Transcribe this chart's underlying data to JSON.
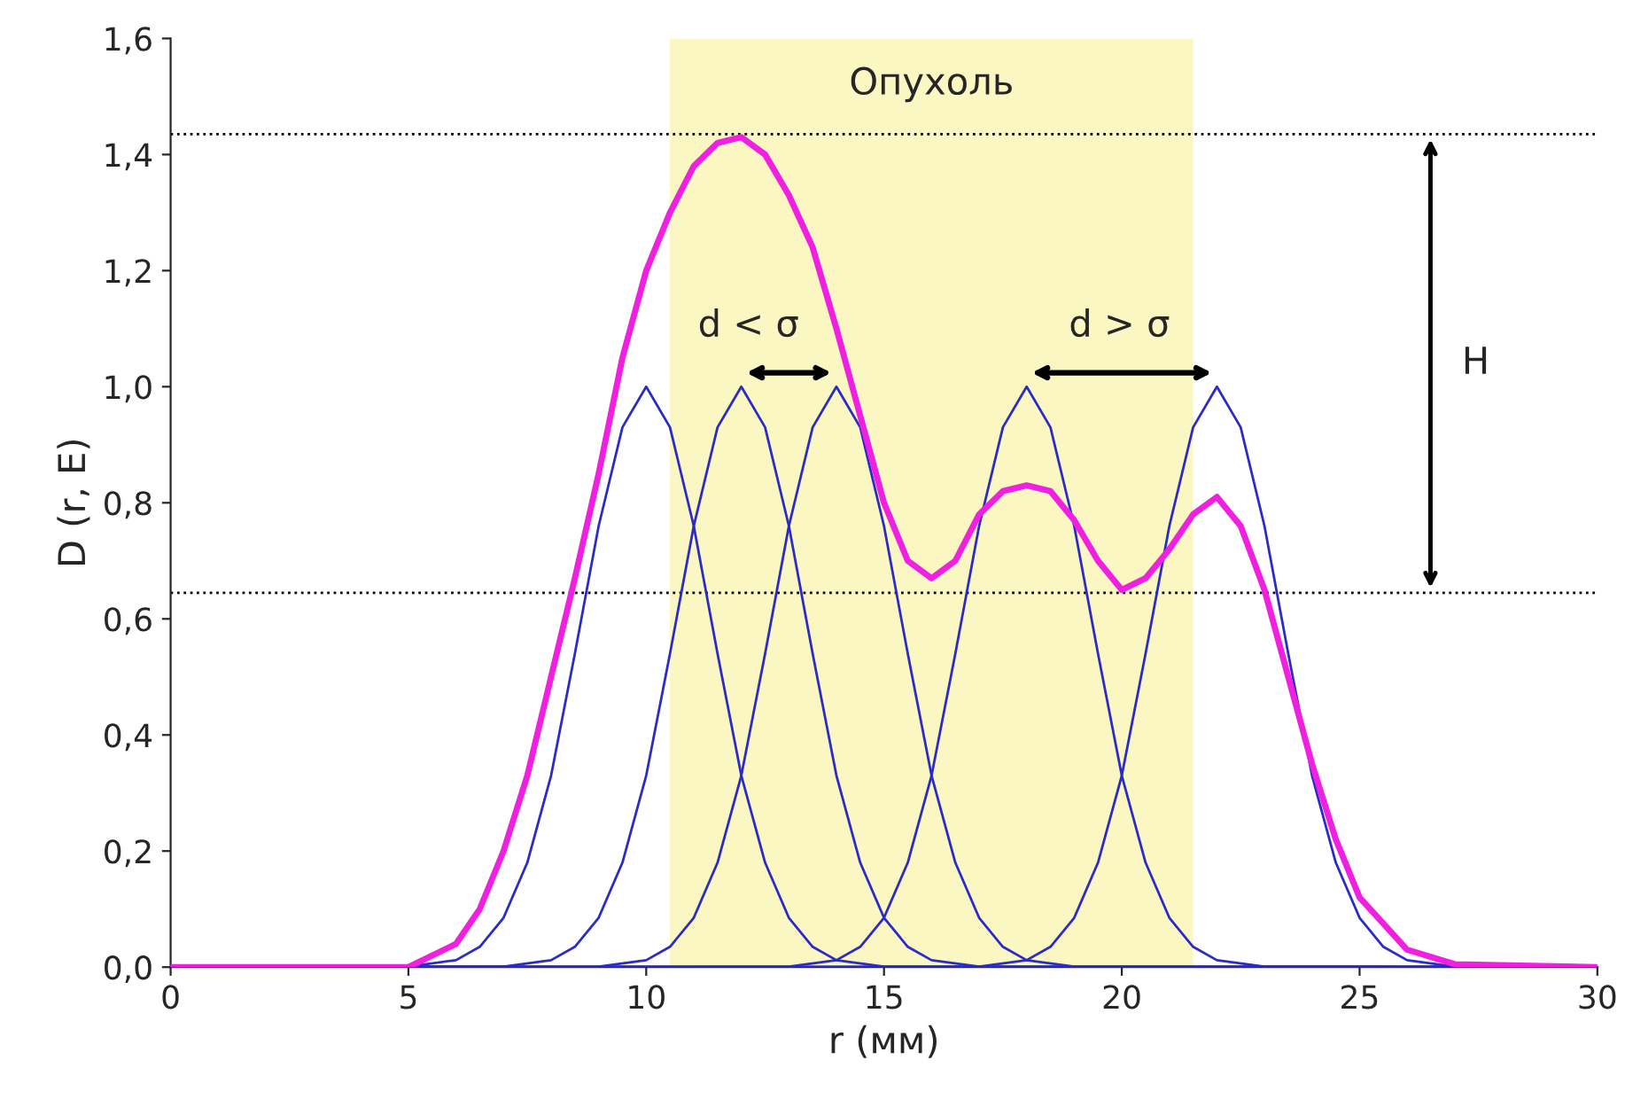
{
  "chart_data": {
    "type": "line",
    "xlabel": "r (мм)",
    "ylabel": "D (r, E)",
    "xlim": [
      0,
      30
    ],
    "xticks": [
      0,
      5,
      10,
      15,
      20,
      25,
      30
    ],
    "ylim": [
      0,
      1.6
    ],
    "yticks": [
      {
        "value": 0,
        "label": "0,0"
      },
      {
        "value": 0.2,
        "label": "0,2"
      },
      {
        "value": 0.4,
        "label": "0,4"
      },
      {
        "value": 0.6,
        "label": "0,6"
      },
      {
        "value": 0.8,
        "label": "0,8"
      },
      {
        "value": 1.0,
        "label": "1,0"
      },
      {
        "value": 1.2,
        "label": "1,2"
      },
      {
        "value": 1.4,
        "label": "1,4"
      },
      {
        "value": 1.6,
        "label": "1,6"
      }
    ],
    "grid": false,
    "legend": false,
    "marker": "none",
    "line_style": "solid",
    "bands": [
      {
        "axis": "x",
        "from": 10.5,
        "to": 21.5,
        "label": "Опухоль",
        "color": "#fbf7c3"
      }
    ],
    "ref_lines": [
      {
        "axis": "y",
        "value": 1.435,
        "line_style": "dotted",
        "color": "#000000"
      },
      {
        "axis": "y",
        "value": 0.645,
        "line_style": "dotted",
        "color": "#000000"
      }
    ],
    "annotations": [
      "d < σ",
      "d > σ",
      "H"
    ],
    "series": [
      {
        "color": "#2b2bc8",
        "x": [
          0,
          5,
          6,
          6.5,
          7,
          7.5,
          8,
          8.5,
          9,
          9.5,
          10,
          10.5,
          11,
          11.5,
          12,
          12.5,
          13,
          13.5,
          14,
          15,
          30
        ],
        "values": [
          0,
          0.001,
          0.012,
          0.035,
          0.085,
          0.18,
          0.33,
          0.54,
          0.76,
          0.93,
          1.0,
          0.93,
          0.76,
          0.54,
          0.33,
          0.18,
          0.085,
          0.035,
          0.012,
          0.001,
          0
        ]
      },
      {
        "color": "#2b2bc8",
        "x": [
          0,
          7,
          8,
          8.5,
          9,
          9.5,
          10,
          10.5,
          11,
          11.5,
          12,
          12.5,
          13,
          13.5,
          14,
          14.5,
          15,
          15.5,
          16,
          17,
          30
        ],
        "values": [
          0,
          0.001,
          0.012,
          0.035,
          0.085,
          0.18,
          0.33,
          0.54,
          0.76,
          0.93,
          1.0,
          0.93,
          0.76,
          0.54,
          0.33,
          0.18,
          0.085,
          0.035,
          0.012,
          0.001,
          0
        ]
      },
      {
        "color": "#2b2bc8",
        "x": [
          0,
          9,
          10,
          10.5,
          11,
          11.5,
          12,
          12.5,
          13,
          13.5,
          14,
          14.5,
          15,
          15.5,
          16,
          16.5,
          17,
          17.5,
          18,
          19,
          30
        ],
        "values": [
          0,
          0.001,
          0.012,
          0.035,
          0.085,
          0.18,
          0.33,
          0.54,
          0.76,
          0.93,
          1.0,
          0.93,
          0.76,
          0.54,
          0.33,
          0.18,
          0.085,
          0.035,
          0.012,
          0.001,
          0
        ]
      },
      {
        "color": "#2b2bc8",
        "x": [
          0,
          13,
          14,
          14.5,
          15,
          15.5,
          16,
          16.5,
          17,
          17.5,
          18,
          18.5,
          19,
          19.5,
          20,
          20.5,
          21,
          21.5,
          22,
          23,
          30
        ],
        "values": [
          0,
          0.001,
          0.012,
          0.035,
          0.085,
          0.18,
          0.33,
          0.54,
          0.76,
          0.93,
          1.0,
          0.93,
          0.76,
          0.54,
          0.33,
          0.18,
          0.085,
          0.035,
          0.012,
          0.001,
          0
        ]
      },
      {
        "color": "#2b2bc8",
        "x": [
          0,
          17,
          18,
          18.5,
          19,
          19.5,
          20,
          20.5,
          21,
          21.5,
          22,
          22.5,
          23,
          23.5,
          24,
          24.5,
          25,
          25.5,
          26,
          27,
          30
        ],
        "values": [
          0,
          0.001,
          0.012,
          0.035,
          0.085,
          0.18,
          0.33,
          0.54,
          0.76,
          0.93,
          1.0,
          0.93,
          0.76,
          0.54,
          0.33,
          0.18,
          0.085,
          0.035,
          0.012,
          0.001,
          0
        ]
      },
      {
        "color": "#f020e0",
        "x": [
          0,
          5,
          6,
          6.5,
          7,
          7.5,
          8,
          8.5,
          9,
          9.5,
          10,
          10.5,
          11,
          11.5,
          12,
          12.5,
          13,
          13.5,
          14,
          14.5,
          15,
          15.5,
          16,
          16.5,
          17,
          17.5,
          18,
          18.5,
          19,
          19.5,
          20,
          20.5,
          21,
          21.5,
          22,
          22.5,
          23,
          23.5,
          24,
          24.5,
          25,
          26,
          27,
          30
        ],
        "values": [
          0,
          0.0,
          0.04,
          0.1,
          0.2,
          0.33,
          0.5,
          0.67,
          0.85,
          1.05,
          1.2,
          1.3,
          1.38,
          1.42,
          1.43,
          1.4,
          1.33,
          1.24,
          1.1,
          0.95,
          0.8,
          0.7,
          0.67,
          0.7,
          0.78,
          0.82,
          0.83,
          0.82,
          0.77,
          0.7,
          0.65,
          0.67,
          0.72,
          0.78,
          0.81,
          0.76,
          0.65,
          0.5,
          0.35,
          0.22,
          0.12,
          0.03,
          0.005,
          0
        ]
      }
    ]
  }
}
